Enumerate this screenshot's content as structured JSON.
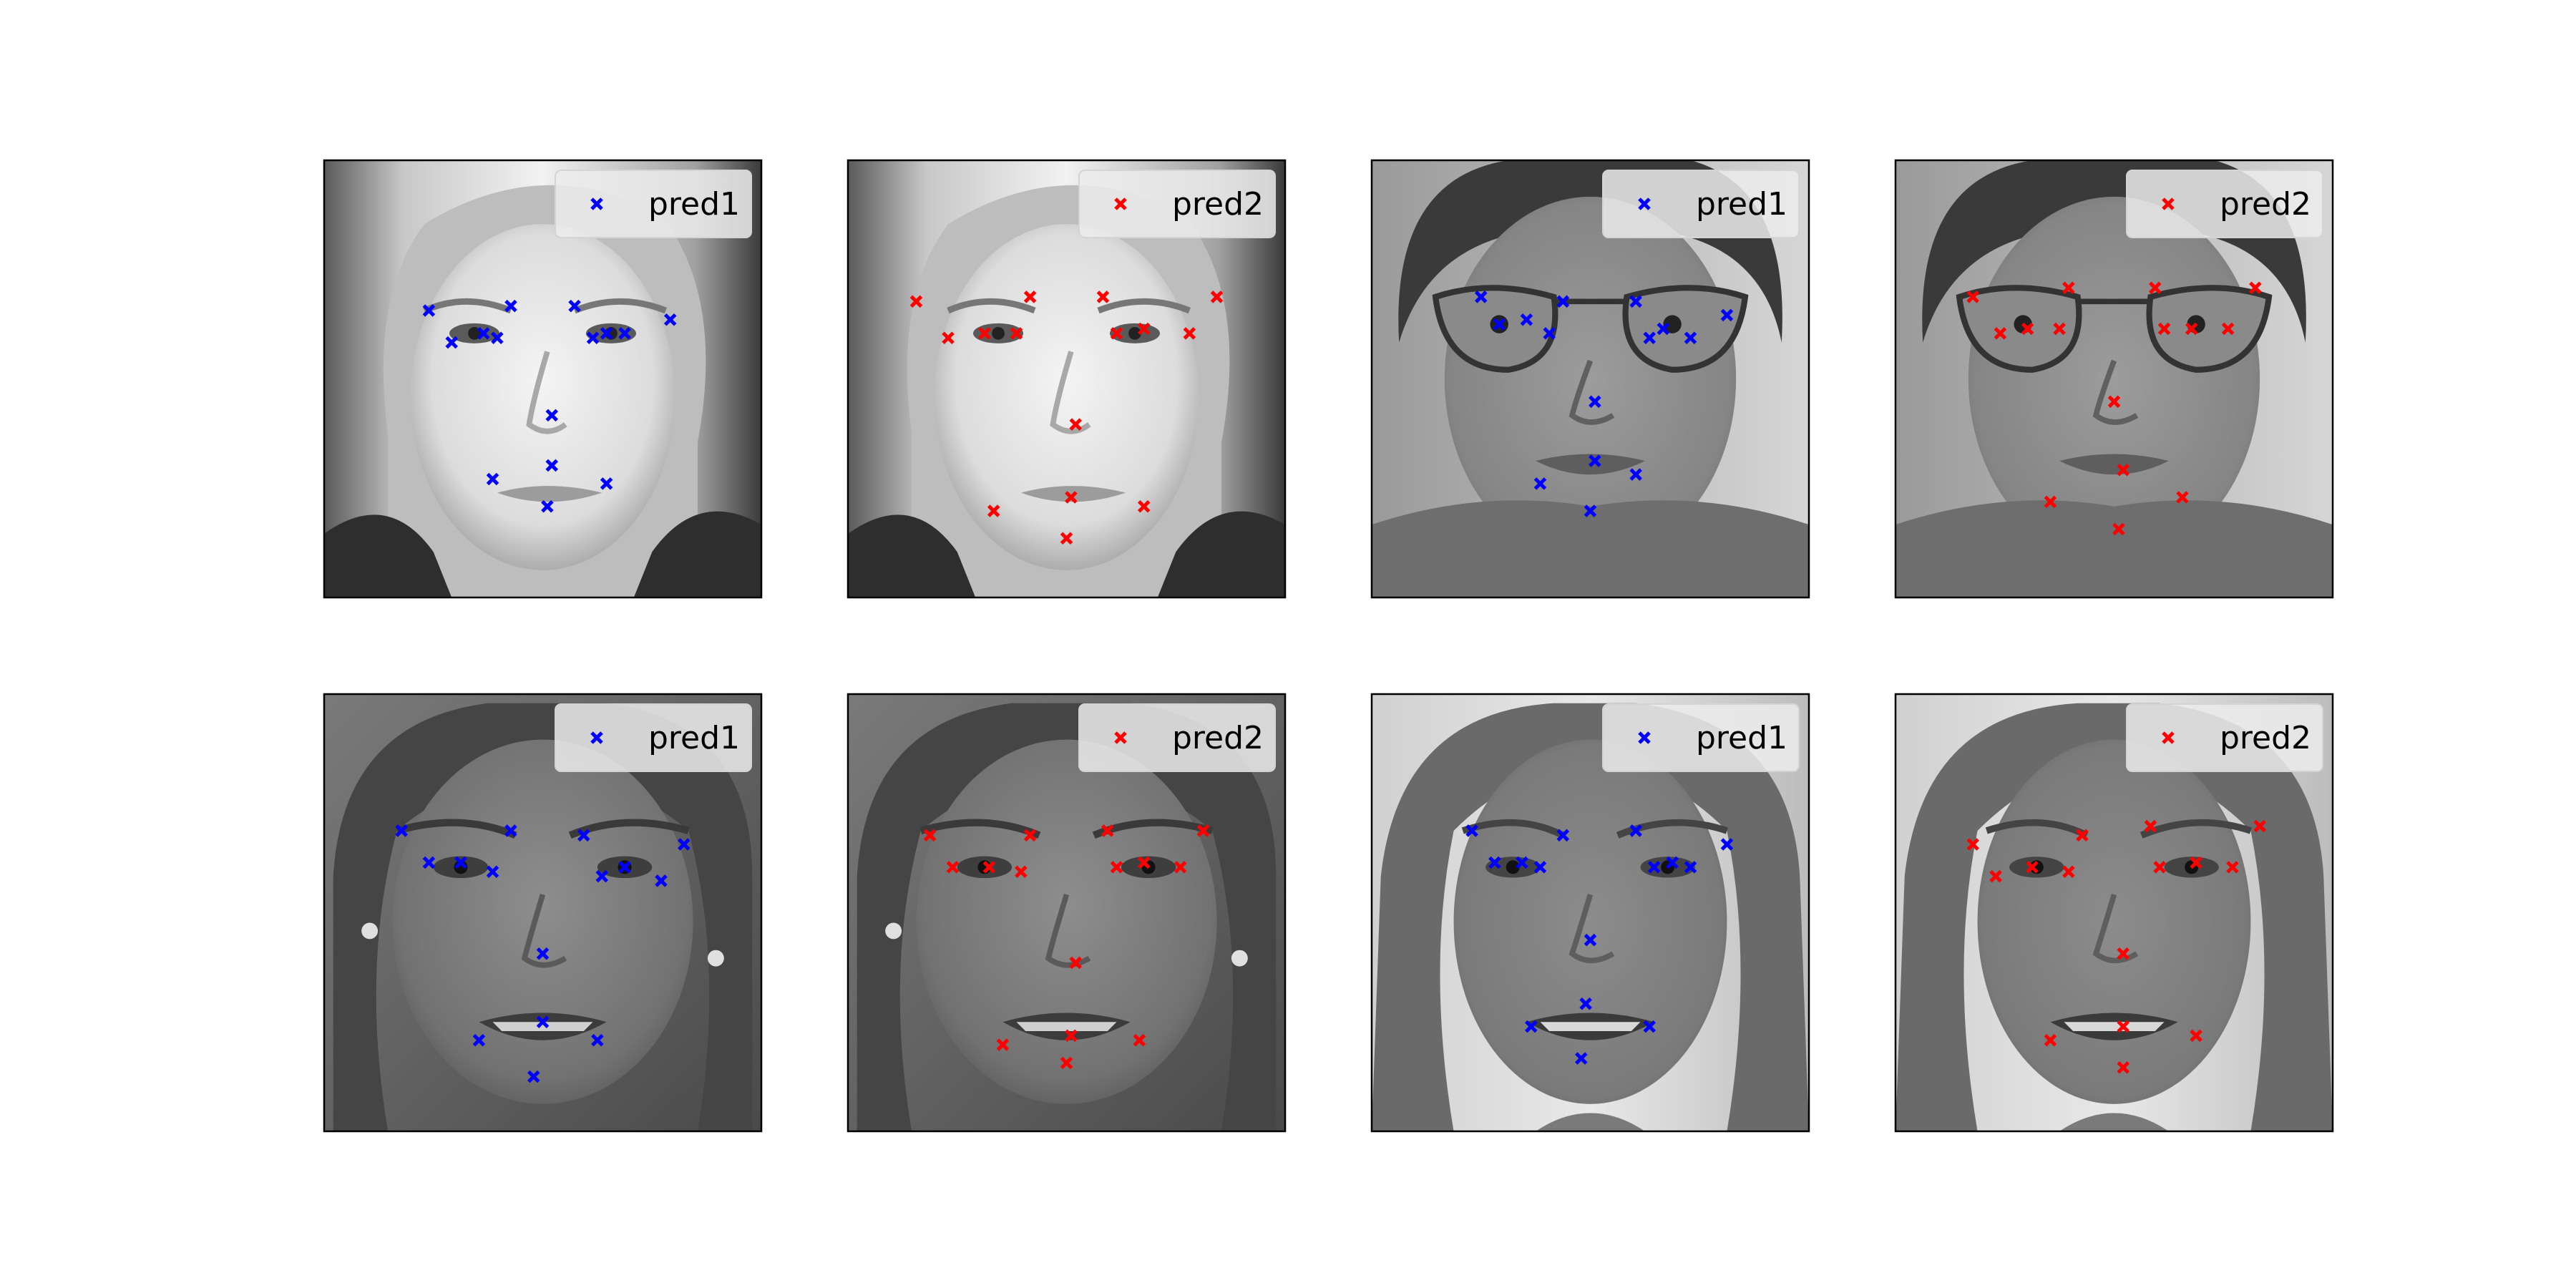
{
  "figure": {
    "rows": 2,
    "cols": 4
  },
  "colors": {
    "pred1": "#0000ff",
    "pred2": "#ff0000",
    "axes_frame": "#000000",
    "legend_bg": "#ececec"
  },
  "chart_data": [
    {
      "type": "scatter",
      "image": "face-1-grayscale",
      "xlim": [
        0,
        96
      ],
      "ylim": [
        96,
        0
      ],
      "legend": "top-right",
      "series": [
        {
          "name": "pred1",
          "marker": "x",
          "color": "#0000ff",
          "points": [
            [
              23,
              33
            ],
            [
              28,
              40
            ],
            [
              35,
              38
            ],
            [
              38,
              39
            ],
            [
              41,
              32
            ],
            [
              55,
              32
            ],
            [
              59,
              39
            ],
            [
              62,
              38
            ],
            [
              66,
              38
            ],
            [
              76,
              35
            ],
            [
              50,
              56
            ],
            [
              37,
              70
            ],
            [
              50,
              67
            ],
            [
              49,
              76
            ],
            [
              62,
              71
            ]
          ]
        }
      ]
    },
    {
      "type": "scatter",
      "image": "face-1-grayscale",
      "xlim": [
        0,
        96
      ],
      "ylim": [
        96,
        0
      ],
      "legend": "top-right",
      "series": [
        {
          "name": "pred2",
          "marker": "x",
          "color": "#ff0000",
          "points": [
            [
              15,
              31
            ],
            [
              22,
              39
            ],
            [
              30,
              38
            ],
            [
              37,
              38
            ],
            [
              40,
              30
            ],
            [
              56,
              30
            ],
            [
              59,
              38
            ],
            [
              65,
              37
            ],
            [
              75,
              38
            ],
            [
              81,
              30
            ],
            [
              50,
              58
            ],
            [
              32,
              77
            ],
            [
              49,
              74
            ],
            [
              48,
              83
            ],
            [
              65,
              76
            ]
          ]
        }
      ]
    },
    {
      "type": "scatter",
      "image": "face-2-grayscale",
      "xlim": [
        0,
        96
      ],
      "ylim": [
        96,
        0
      ],
      "legend": "top-right",
      "series": [
        {
          "name": "pred1",
          "marker": "x",
          "color": "#0000ff",
          "points": [
            [
              24,
              30
            ],
            [
              28,
              36
            ],
            [
              34,
              35
            ],
            [
              39,
              38
            ],
            [
              42,
              31
            ],
            [
              58,
              31
            ],
            [
              61,
              39
            ],
            [
              64,
              37
            ],
            [
              70,
              39
            ],
            [
              78,
              34
            ],
            [
              49,
              53
            ],
            [
              37,
              71
            ],
            [
              49,
              66
            ],
            [
              48,
              77
            ],
            [
              58,
              69
            ]
          ]
        }
      ]
    },
    {
      "type": "scatter",
      "image": "face-2-grayscale",
      "xlim": [
        0,
        96
      ],
      "ylim": [
        96,
        0
      ],
      "legend": "top-right",
      "series": [
        {
          "name": "pred2",
          "marker": "x",
          "color": "#ff0000",
          "points": [
            [
              17,
              30
            ],
            [
              23,
              38
            ],
            [
              29,
              37
            ],
            [
              36,
              37
            ],
            [
              38,
              28
            ],
            [
              57,
              28
            ],
            [
              59,
              37
            ],
            [
              65,
              37
            ],
            [
              73,
              37
            ],
            [
              79,
              28
            ],
            [
              48,
              53
            ],
            [
              34,
              75
            ],
            [
              50,
              68
            ],
            [
              49,
              81
            ],
            [
              63,
              74
            ]
          ]
        }
      ]
    },
    {
      "type": "scatter",
      "image": "face-3-grayscale",
      "xlim": [
        0,
        96
      ],
      "ylim": [
        96,
        0
      ],
      "legend": "top-right",
      "series": [
        {
          "name": "pred1",
          "marker": "x",
          "color": "#0000ff",
          "points": [
            [
              17,
              30
            ],
            [
              23,
              37
            ],
            [
              30,
              37
            ],
            [
              37,
              39
            ],
            [
              41,
              30
            ],
            [
              57,
              31
            ],
            [
              61,
              40
            ],
            [
              66,
              38
            ],
            [
              74,
              41
            ],
            [
              79,
              33
            ],
            [
              48,
              57
            ],
            [
              34,
              76
            ],
            [
              48,
              72
            ],
            [
              46,
              84
            ],
            [
              60,
              76
            ]
          ]
        }
      ]
    },
    {
      "type": "scatter",
      "image": "face-3-grayscale",
      "xlim": [
        0,
        96
      ],
      "ylim": [
        96,
        0
      ],
      "legend": "top-right",
      "series": [
        {
          "name": "pred2",
          "marker": "x",
          "color": "#ff0000",
          "points": [
            [
              18,
              31
            ],
            [
              23,
              38
            ],
            [
              31,
              38
            ],
            [
              38,
              39
            ],
            [
              40,
              31
            ],
            [
              57,
              30
            ],
            [
              59,
              38
            ],
            [
              65,
              37
            ],
            [
              73,
              38
            ],
            [
              78,
              30
            ],
            [
              50,
              59
            ],
            [
              34,
              77
            ],
            [
              49,
              75
            ],
            [
              48,
              81
            ],
            [
              64,
              76
            ]
          ]
        }
      ]
    },
    {
      "type": "scatter",
      "image": "face-4-grayscale",
      "xlim": [
        0,
        96
      ],
      "ylim": [
        96,
        0
      ],
      "legend": "top-right",
      "series": [
        {
          "name": "pred1",
          "marker": "x",
          "color": "#0000ff",
          "points": [
            [
              22,
              30
            ],
            [
              27,
              37
            ],
            [
              33,
              37
            ],
            [
              37,
              38
            ],
            [
              42,
              31
            ],
            [
              58,
              30
            ],
            [
              62,
              38
            ],
            [
              66,
              37
            ],
            [
              70,
              38
            ],
            [
              78,
              33
            ],
            [
              48,
              54
            ],
            [
              35,
              73
            ],
            [
              47,
              68
            ],
            [
              46,
              80
            ],
            [
              61,
              73
            ]
          ]
        }
      ]
    },
    {
      "type": "scatter",
      "image": "face-4-grayscale",
      "xlim": [
        0,
        96
      ],
      "ylim": [
        96,
        0
      ],
      "legend": "top-right",
      "series": [
        {
          "name": "pred2",
          "marker": "x",
          "color": "#ff0000",
          "points": [
            [
              17,
              33
            ],
            [
              22,
              40
            ],
            [
              30,
              38
            ],
            [
              38,
              39
            ],
            [
              41,
              31
            ],
            [
              56,
              29
            ],
            [
              58,
              38
            ],
            [
              66,
              37
            ],
            [
              74,
              38
            ],
            [
              80,
              29
            ],
            [
              50,
              57
            ],
            [
              34,
              76
            ],
            [
              50,
              73
            ],
            [
              50,
              82
            ],
            [
              66,
              75
            ]
          ]
        }
      ]
    }
  ]
}
